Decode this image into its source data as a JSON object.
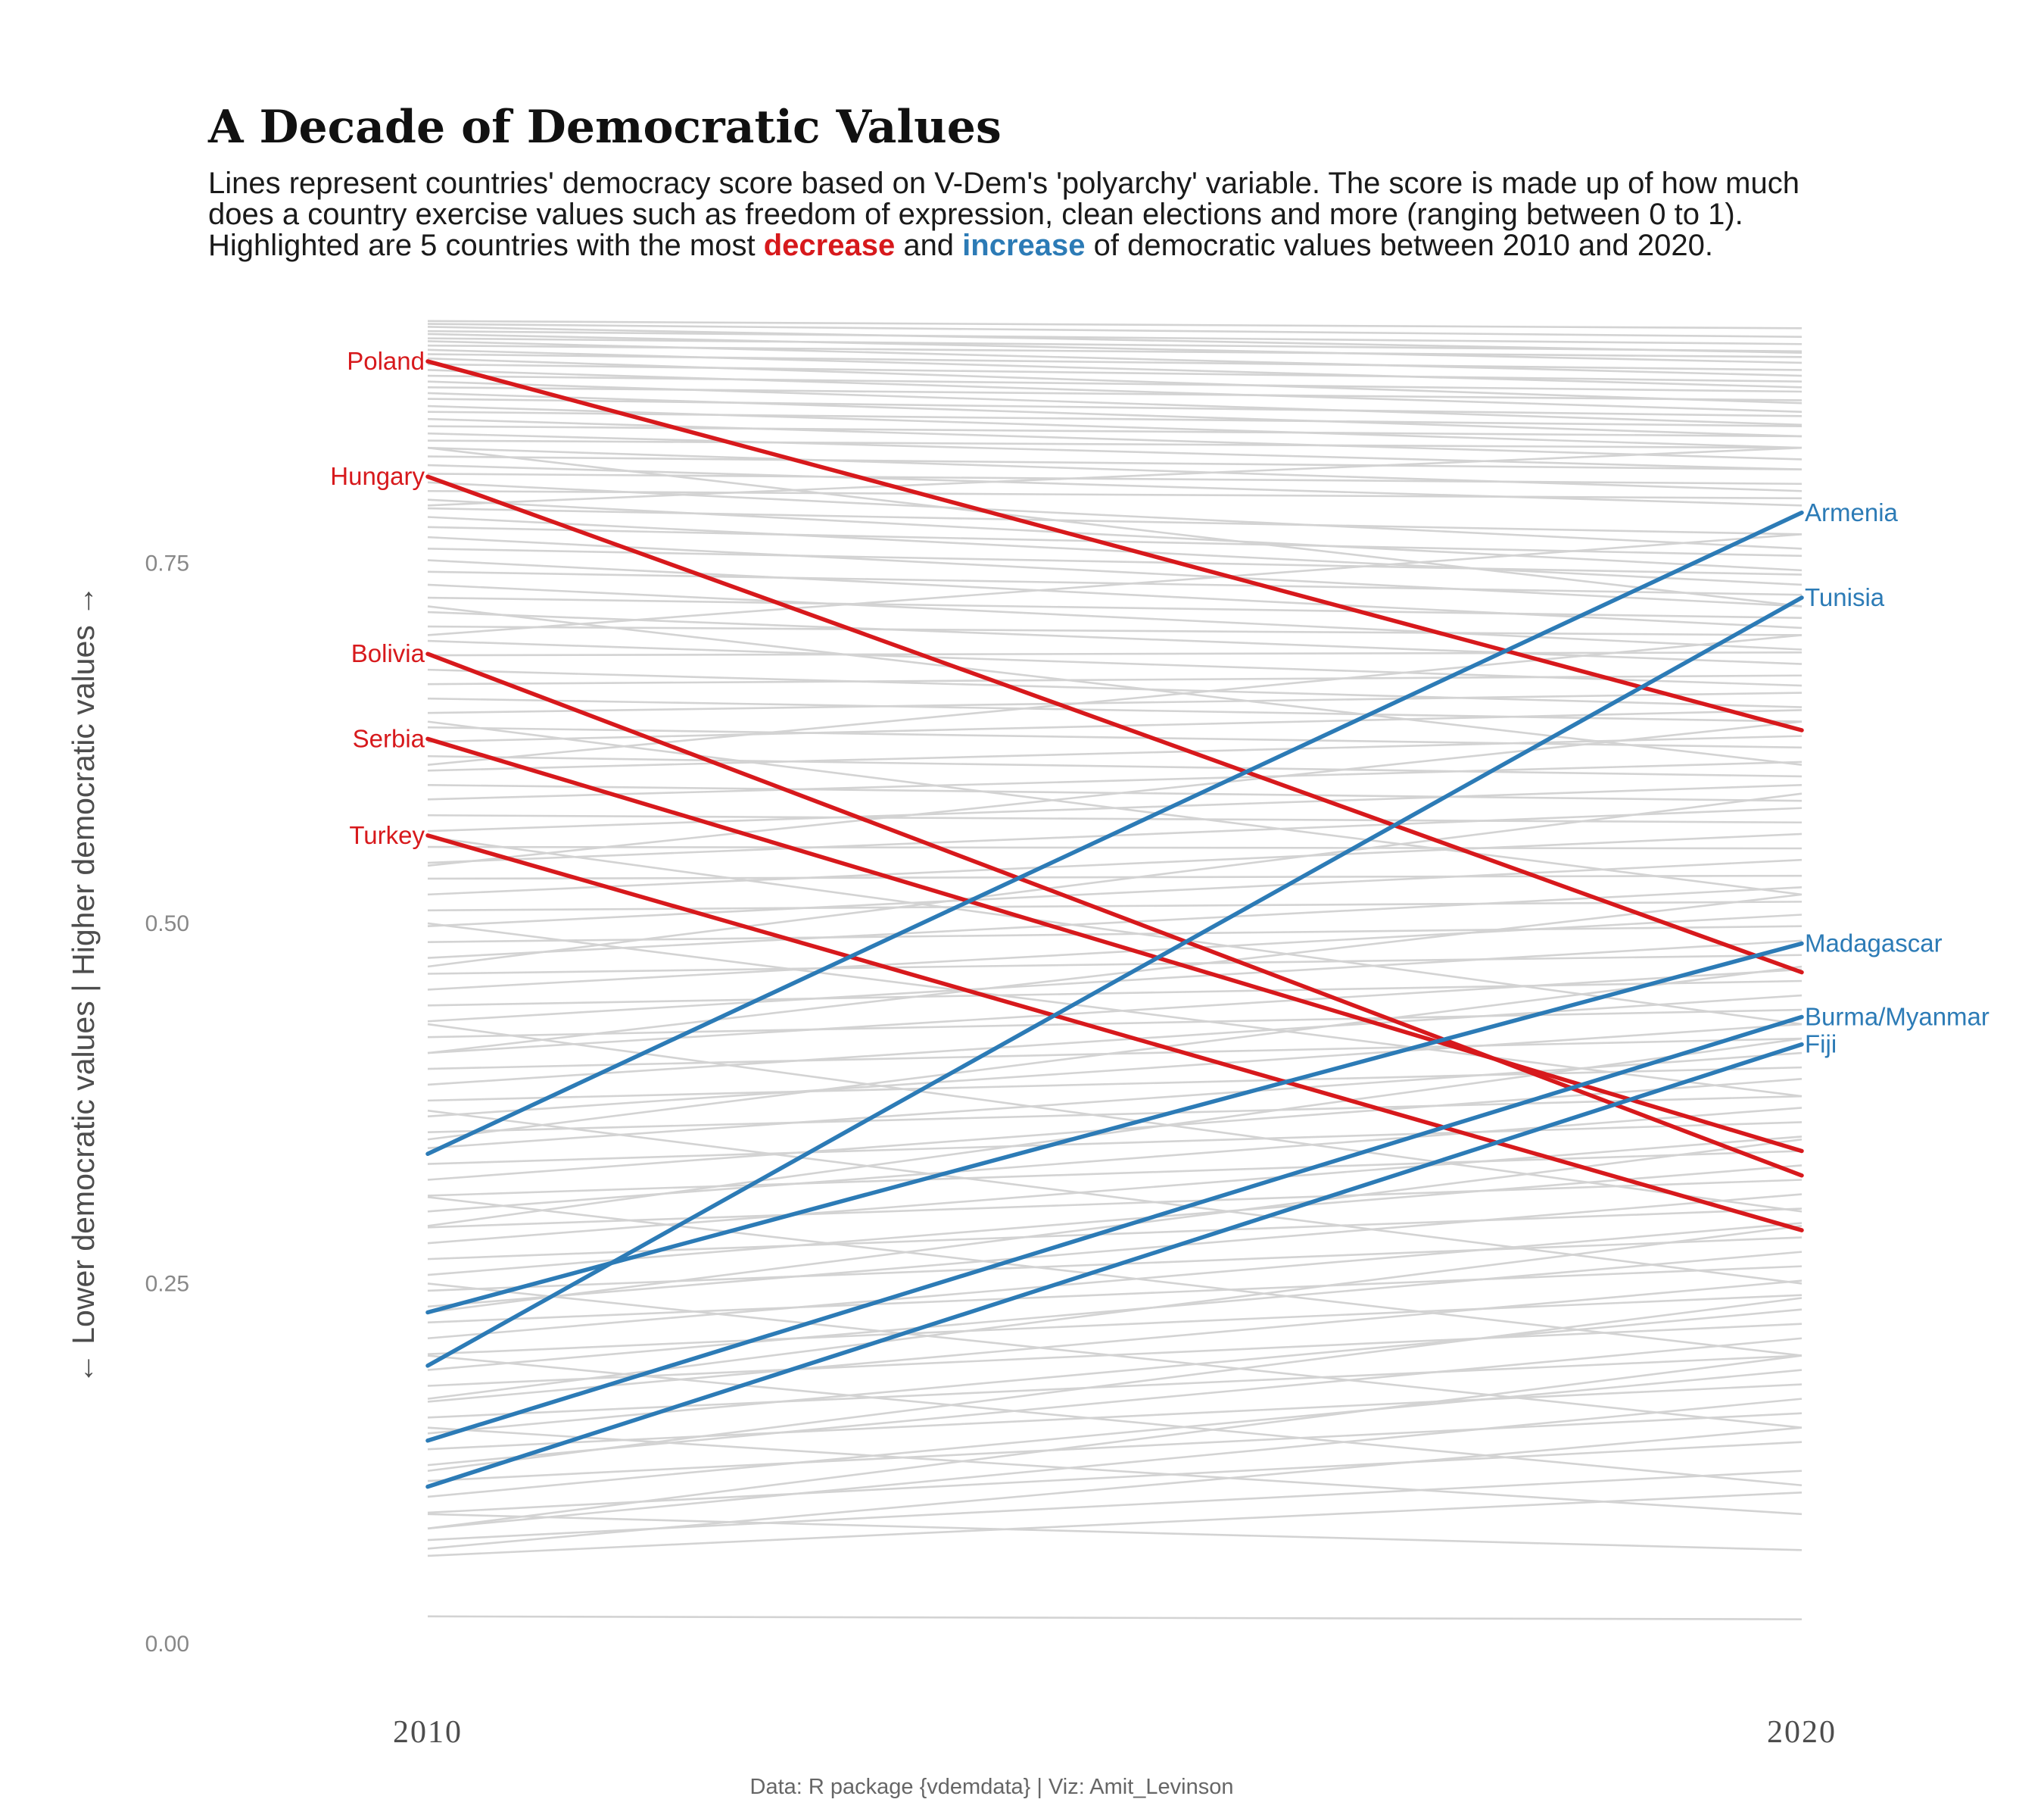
{
  "chart_data": {
    "type": "line",
    "title": "A Decade of Democratic Values",
    "subtitle": {
      "line1": "Lines represent countries' democracy score based on V-Dem's 'polyarchy' variable. The score is made up of how much",
      "line2": "does a country exercise values such as freedom of expression, clean elections and more (ranging between 0 to 1).",
      "line3_prefix": "Highlighted are 5 countries with the most ",
      "line3_decrease": "decrease",
      "line3_middle": " and ",
      "line3_increase": "increase",
      "line3_suffix": " of democratic values between 2010 and 2020."
    },
    "ylabel": "← Lower democratic values | Higher democratic values →",
    "caption": "Data: R package {vdemdata} | Viz: Amit_Levinson",
    "x": [
      2010,
      2020
    ],
    "x_tick_labels": [
      "2010",
      "2020"
    ],
    "ylim": [
      0,
      0.92
    ],
    "y_ticks": [
      0,
      0.25,
      0.5,
      0.75
    ],
    "y_tick_labels": [
      "0.00",
      "0.25",
      "0.50",
      "0.75"
    ],
    "grid": false,
    "colors": {
      "decrease": "#d7191c",
      "increase": "#2c7bb6",
      "background": "#d3d3d3"
    },
    "highlighted_series": [
      {
        "name": "Poland",
        "group": "decrease",
        "values": [
          0.89,
          0.634
        ]
      },
      {
        "name": "Hungary",
        "group": "decrease",
        "values": [
          0.81,
          0.466
        ]
      },
      {
        "name": "Bolivia",
        "group": "decrease",
        "values": [
          0.687,
          0.325
        ]
      },
      {
        "name": "Serbia",
        "group": "decrease",
        "values": [
          0.628,
          0.342
        ]
      },
      {
        "name": "Turkey",
        "group": "decrease",
        "values": [
          0.561,
          0.287
        ]
      },
      {
        "name": "Armenia",
        "group": "increase",
        "values": [
          0.34,
          0.785
        ]
      },
      {
        "name": "Tunisia",
        "group": "increase",
        "values": [
          0.193,
          0.726
        ]
      },
      {
        "name": "Madagascar",
        "group": "increase",
        "values": [
          0.23,
          0.486
        ]
      },
      {
        "name": "Burma/Myanmar",
        "group": "increase",
        "values": [
          0.141,
          0.435
        ]
      },
      {
        "name": "Fiji",
        "group": "increase",
        "values": [
          0.109,
          0.416
        ]
      }
    ],
    "background_series": [
      [
        0.918,
        0.913
      ],
      [
        0.916,
        0.907
      ],
      [
        0.914,
        0.896
      ],
      [
        0.911,
        0.902
      ],
      [
        0.909,
        0.889
      ],
      [
        0.906,
        0.897
      ],
      [
        0.904,
        0.88
      ],
      [
        0.901,
        0.893
      ],
      [
        0.898,
        0.872
      ],
      [
        0.895,
        0.884
      ],
      [
        0.892,
        0.861
      ],
      [
        0.888,
        0.876
      ],
      [
        0.884,
        0.855
      ],
      [
        0.88,
        0.869
      ],
      [
        0.876,
        0.846
      ],
      [
        0.872,
        0.863
      ],
      [
        0.868,
        0.838
      ],
      [
        0.864,
        0.852
      ],
      [
        0.859,
        0.83
      ],
      [
        0.855,
        0.845
      ],
      [
        0.85,
        0.822
      ],
      [
        0.845,
        0.838
      ],
      [
        0.84,
        0.815
      ],
      [
        0.835,
        0.83
      ],
      [
        0.83,
        0.8
      ],
      [
        0.824,
        0.815
      ],
      [
        0.818,
        0.79
      ],
      [
        0.812,
        0.805
      ],
      [
        0.806,
        0.76
      ],
      [
        0.8,
        0.795
      ],
      [
        0.794,
        0.745
      ],
      [
        0.788,
        0.77
      ],
      [
        0.782,
        0.735
      ],
      [
        0.775,
        0.755
      ],
      [
        0.768,
        0.72
      ],
      [
        0.76,
        0.742
      ],
      [
        0.752,
        0.705
      ],
      [
        0.744,
        0.728
      ],
      [
        0.735,
        0.69
      ],
      [
        0.726,
        0.712
      ],
      [
        0.716,
        0.68
      ],
      [
        0.706,
        0.7
      ],
      [
        0.696,
        0.665
      ],
      [
        0.686,
        0.688
      ],
      [
        0.676,
        0.65
      ],
      [
        0.666,
        0.672
      ],
      [
        0.656,
        0.64
      ],
      [
        0.646,
        0.66
      ],
      [
        0.636,
        0.622
      ],
      [
        0.626,
        0.648
      ],
      [
        0.616,
        0.602
      ],
      [
        0.606,
        0.63
      ],
      [
        0.596,
        0.585
      ],
      [
        0.586,
        0.612
      ],
      [
        0.575,
        0.57
      ],
      [
        0.564,
        0.596
      ],
      [
        0.553,
        0.552
      ],
      [
        0.542,
        0.58
      ],
      [
        0.531,
        0.533
      ],
      [
        0.52,
        0.562
      ],
      [
        0.509,
        0.515
      ],
      [
        0.498,
        0.544
      ],
      [
        0.487,
        0.498
      ],
      [
        0.476,
        0.525
      ],
      [
        0.465,
        0.478
      ],
      [
        0.454,
        0.506
      ],
      [
        0.443,
        0.46
      ],
      [
        0.432,
        0.488
      ],
      [
        0.421,
        0.44
      ],
      [
        0.41,
        0.468
      ],
      [
        0.399,
        0.42
      ],
      [
        0.388,
        0.45
      ],
      [
        0.377,
        0.4
      ],
      [
        0.366,
        0.43
      ],
      [
        0.355,
        0.38
      ],
      [
        0.344,
        0.41
      ],
      [
        0.333,
        0.362
      ],
      [
        0.322,
        0.392
      ],
      [
        0.311,
        0.342
      ],
      [
        0.3,
        0.372
      ],
      [
        0.289,
        0.322
      ],
      [
        0.278,
        0.352
      ],
      [
        0.267,
        0.302
      ],
      [
        0.256,
        0.332
      ],
      [
        0.245,
        0.282
      ],
      [
        0.234,
        0.312
      ],
      [
        0.223,
        0.262
      ],
      [
        0.212,
        0.292
      ],
      [
        0.201,
        0.242
      ],
      [
        0.19,
        0.272
      ],
      [
        0.179,
        0.222
      ],
      [
        0.168,
        0.252
      ],
      [
        0.157,
        0.2
      ],
      [
        0.146,
        0.232
      ],
      [
        0.135,
        0.18
      ],
      [
        0.124,
        0.212
      ],
      [
        0.113,
        0.16
      ],
      [
        0.102,
        0.19
      ],
      [
        0.091,
        0.14
      ],
      [
        0.08,
        0.17
      ],
      [
        0.072,
        0.12
      ],
      [
        0.066,
        0.15
      ],
      [
        0.061,
        0.105
      ],
      [
        0.019,
        0.017
      ],
      [
        0.83,
        0.72
      ],
      [
        0.79,
        0.83
      ],
      [
        0.72,
        0.61
      ],
      [
        0.7,
        0.77
      ],
      [
        0.64,
        0.52
      ],
      [
        0.61,
        0.7
      ],
      [
        0.56,
        0.43
      ],
      [
        0.54,
        0.64
      ],
      [
        0.5,
        0.38
      ],
      [
        0.47,
        0.59
      ],
      [
        0.43,
        0.3
      ],
      [
        0.41,
        0.52
      ],
      [
        0.37,
        0.25
      ],
      [
        0.35,
        0.47
      ],
      [
        0.31,
        0.2
      ],
      [
        0.29,
        0.42
      ],
      [
        0.25,
        0.15
      ],
      [
        0.23,
        0.35
      ],
      [
        0.2,
        0.11
      ],
      [
        0.17,
        0.29
      ],
      [
        0.15,
        0.09
      ],
      [
        0.12,
        0.24
      ],
      [
        0.09,
        0.065
      ],
      [
        0.08,
        0.2
      ]
    ]
  }
}
